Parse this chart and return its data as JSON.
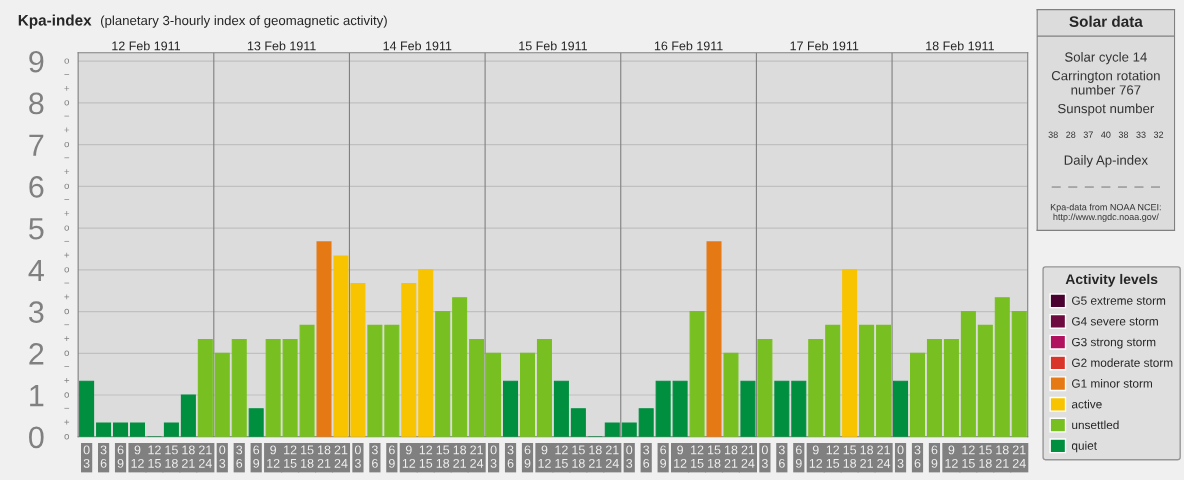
{
  "chart_data": [
    {
      "type": "bar",
      "title": "Kpa-index",
      "subtitle": "(planetary 3-hourly index of geomagnetic activity)",
      "categories": [
        "0\n3",
        "3\n6",
        "6\n9",
        "9\n12",
        "12\n15",
        "15\n18",
        "18\n21",
        "21\n24",
        "0\n3",
        "3\n6",
        "6\n9",
        "9\n12",
        "12\n15",
        "15\n18",
        "18\n21",
        "21\n24",
        "0\n3",
        "3\n6",
        "6\n9",
        "9\n12",
        "12\n15",
        "15\n18",
        "18\n21",
        "21\n24",
        "0\n3",
        "3\n6",
        "6\n9",
        "9\n12",
        "12\n15",
        "15\n18",
        "18\n21",
        "21\n24",
        "0\n3",
        "3\n6",
        "6\n9",
        "9\n12",
        "12\n15",
        "15\n18",
        "18\n21",
        "21\n24",
        "0\n3",
        "3\n6",
        "6\n9",
        "9\n12",
        "12\n15",
        "15\n18",
        "18\n21",
        "21\n24",
        "0\n3",
        "3\n6",
        "6\n9",
        "9\n12",
        "12\n15",
        "15\n18",
        "18\n21",
        "21\n24"
      ],
      "series": [
        {
          "name": "G5 extreme storm",
          "color": "#4a0030",
          "values": [
            null,
            null,
            null,
            null,
            null,
            null,
            null,
            null,
            null,
            null,
            null,
            null,
            null,
            null,
            null,
            null,
            null,
            null,
            null,
            null,
            null,
            null,
            null,
            null,
            null,
            null,
            null,
            null,
            null,
            null,
            null,
            null,
            null,
            null,
            null,
            null,
            null,
            null,
            null,
            null,
            null,
            null,
            null,
            null,
            null,
            null,
            null,
            null,
            null,
            null,
            null,
            null,
            null,
            null,
            null,
            null
          ]
        },
        {
          "name": "G4 severe storm",
          "color": "#6d0a40",
          "values": [
            null,
            null,
            null,
            null,
            null,
            null,
            null,
            null,
            null,
            null,
            null,
            null,
            null,
            null,
            null,
            null,
            null,
            null,
            null,
            null,
            null,
            null,
            null,
            null,
            null,
            null,
            null,
            null,
            null,
            null,
            null,
            null,
            null,
            null,
            null,
            null,
            null,
            null,
            null,
            null,
            null,
            null,
            null,
            null,
            null,
            null,
            null,
            null,
            null,
            null,
            null,
            null,
            null,
            null,
            null,
            null
          ]
        },
        {
          "name": "G3 strong storm",
          "color": "#b0125f",
          "values": [
            null,
            null,
            null,
            null,
            null,
            null,
            null,
            null,
            null,
            null,
            null,
            null,
            null,
            null,
            null,
            null,
            null,
            null,
            null,
            null,
            null,
            null,
            null,
            null,
            null,
            null,
            null,
            null,
            null,
            null,
            null,
            null,
            null,
            null,
            null,
            null,
            null,
            null,
            null,
            null,
            null,
            null,
            null,
            null,
            null,
            null,
            null,
            null,
            null,
            null,
            null,
            null,
            null,
            null,
            null,
            null
          ]
        },
        {
          "name": "G2 moderate storm",
          "color": "#d9342a",
          "values": [
            null,
            null,
            null,
            null,
            null,
            null,
            null,
            null,
            null,
            null,
            null,
            null,
            null,
            null,
            null,
            null,
            null,
            null,
            null,
            null,
            null,
            null,
            null,
            null,
            null,
            null,
            null,
            null,
            null,
            null,
            null,
            null,
            null,
            null,
            null,
            null,
            null,
            null,
            null,
            null,
            null,
            null,
            null,
            null,
            null,
            null,
            null,
            null,
            null,
            null,
            null,
            null,
            null,
            null,
            null,
            null
          ]
        },
        {
          "name": "G1 minor storm",
          "color": "#e57914",
          "values": [
            null,
            null,
            null,
            null,
            null,
            null,
            null,
            null,
            null,
            null,
            null,
            null,
            null,
            null,
            4.67,
            null,
            null,
            null,
            null,
            null,
            null,
            null,
            null,
            null,
            null,
            null,
            null,
            null,
            null,
            null,
            null,
            null,
            null,
            null,
            null,
            null,
            null,
            4.67,
            null,
            null,
            null,
            null,
            null,
            null,
            null,
            null,
            null,
            null,
            null,
            null,
            null,
            null,
            null,
            null,
            null,
            null
          ]
        },
        {
          "name": "active",
          "color": "#f8c400",
          "values": [
            null,
            null,
            null,
            null,
            null,
            null,
            null,
            null,
            null,
            null,
            null,
            null,
            null,
            null,
            null,
            4.33,
            3.67,
            null,
            null,
            3.67,
            4,
            null,
            null,
            null,
            null,
            null,
            null,
            null,
            null,
            null,
            null,
            null,
            null,
            null,
            null,
            null,
            null,
            null,
            null,
            null,
            null,
            null,
            null,
            null,
            null,
            4,
            null,
            null,
            null,
            null,
            null,
            null,
            null,
            null,
            null,
            null
          ]
        },
        {
          "name": "unsettled",
          "color": "#78c021",
          "values": [
            null,
            null,
            null,
            null,
            null,
            null,
            null,
            2.33,
            2,
            2.33,
            null,
            2.33,
            2.33,
            2.67,
            null,
            null,
            null,
            2.67,
            2.67,
            null,
            null,
            3,
            3.33,
            2.33,
            2,
            null,
            2,
            2.33,
            null,
            null,
            null,
            null,
            null,
            null,
            null,
            null,
            3,
            null,
            2,
            null,
            2.33,
            null,
            null,
            2.33,
            2.67,
            null,
            2.67,
            2.67,
            null,
            2,
            2.33,
            2.33,
            3,
            2.67,
            3.33,
            3
          ]
        },
        {
          "name": "quiet",
          "color": "#008f3f",
          "values": [
            1.33,
            0.33,
            0.33,
            0.33,
            0,
            0.33,
            1,
            null,
            null,
            null,
            0.67,
            null,
            null,
            null,
            null,
            null,
            null,
            null,
            null,
            null,
            null,
            null,
            null,
            null,
            null,
            1.33,
            null,
            null,
            1.33,
            0.67,
            0,
            0.33,
            0.33,
            0.67,
            1.33,
            1.33,
            null,
            null,
            null,
            1.33,
            null,
            1.33,
            1.33,
            null,
            null,
            null,
            null,
            null,
            1.33,
            null,
            null,
            null,
            null,
            null,
            null,
            null
          ]
        }
      ],
      "ylim": [
        0,
        9.2
      ],
      "yticks": [
        0,
        1,
        2,
        3,
        4,
        5,
        6,
        7,
        8,
        9
      ],
      "annotations": [
        "12 Feb 1911",
        "13 Feb 1911",
        "14 Feb 1911",
        "15 Feb 1911",
        "16 Feb 1911",
        "17 Feb 1911",
        "18 Feb 1911",
        "o",
        "+",
        "−",
        "o",
        "+",
        "−",
        "o",
        "+",
        "−",
        "o",
        "+",
        "−",
        "o",
        "+",
        "−",
        "o",
        "+",
        "−",
        "o",
        "+",
        "−",
        "o",
        "+",
        "−",
        "o",
        "+",
        "−",
        "o"
      ],
      "grid": "y",
      "legend": "right",
      "legend_title": "Activity levels"
    },
    {
      "type": "other",
      "title": "Solar data",
      "annotations": [
        "Solar cycle 14",
        "Carrington rotation\nnumber 767",
        "Sunspot number",
        "38   28   37   40   38   33   32",
        "Daily Ap-index",
        "—   —   —   —   —   —   —",
        "Kpa-data from NOAA NCEI:\nhttp://www.ngdc.noaa.gov/"
      ]
    }
  ]
}
